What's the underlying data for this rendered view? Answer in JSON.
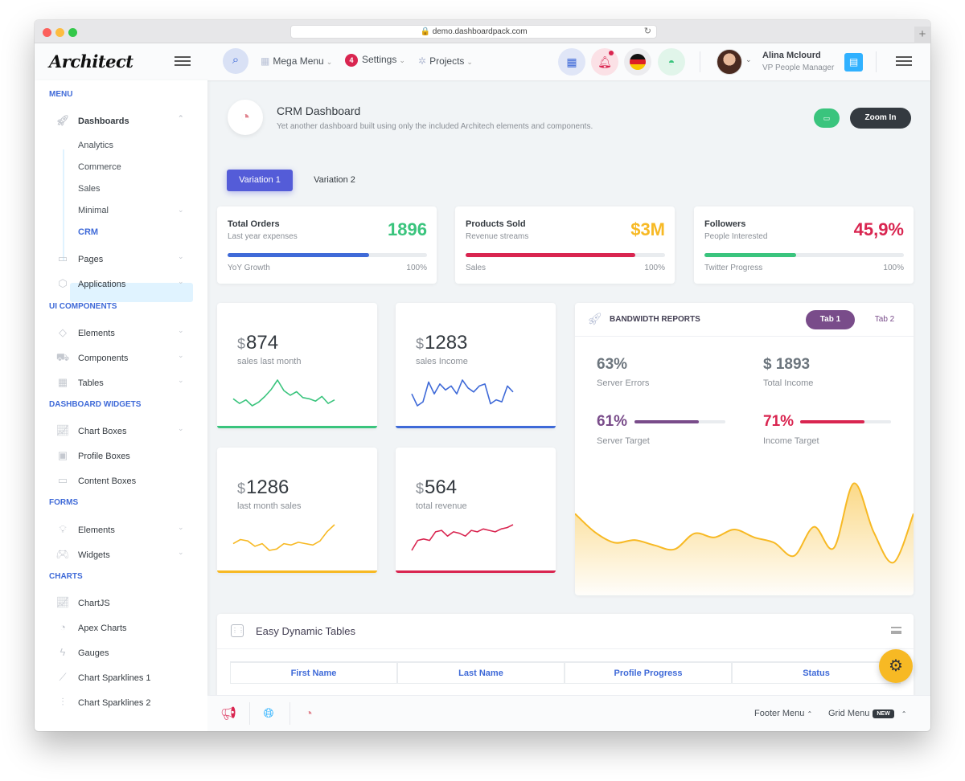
{
  "browser": {
    "url": "demo.dashboardpack.com",
    "reload_icon": "reload-icon",
    "newtab_label": "+"
  },
  "header": {
    "logo": "Architect",
    "nav": [
      {
        "label": "Mega Menu",
        "icon": "grid-icon"
      },
      {
        "label": "Settings",
        "badge": "4"
      },
      {
        "label": "Projects",
        "icon": "gear-icon"
      }
    ],
    "user": {
      "name": "Alina Mclourd",
      "role": "VP People Manager"
    }
  },
  "sidebar": {
    "sections": [
      "Menu",
      "UI Components",
      "Dashboard Widgets",
      "Forms",
      "Charts"
    ],
    "dashboards": {
      "label": "Dashboards",
      "children": [
        "Analytics",
        "Commerce",
        "Sales",
        "Minimal",
        "CRM"
      ]
    },
    "items_main": [
      "Pages",
      "Applications"
    ],
    "items_ui": [
      "Elements",
      "Components",
      "Tables"
    ],
    "items_widgets": [
      "Chart Boxes",
      "Profile Boxes",
      "Content Boxes"
    ],
    "items_forms": [
      "Elements",
      "Widgets"
    ],
    "items_charts": [
      "ChartJS",
      "Apex Charts",
      "Gauges",
      "Chart Sparklines 1",
      "Chart Sparklines 2"
    ]
  },
  "page": {
    "title": "CRM Dashboard",
    "subtitle": "Yet another dashboard built using only the included Architech elements and components.",
    "zoom_label": "Zoom In",
    "tabs": [
      "Variation 1",
      "Variation 2"
    ]
  },
  "widgets": [
    {
      "title": "Total Orders",
      "sub": "Last year expenses",
      "value": "1896",
      "foot": "YoY Growth",
      "pct": "100%",
      "progress": 71,
      "color": "#3ac47d",
      "bar": "#3f6ad8"
    },
    {
      "title": "Products Sold",
      "sub": "Revenue streams",
      "value": "$3M",
      "foot": "Sales",
      "pct": "100%",
      "progress": 85,
      "color": "#f7b924",
      "bar": "#d92550"
    },
    {
      "title": "Followers",
      "sub": "People Interested",
      "value": "45,9%",
      "foot": "Twitter Progress",
      "pct": "100%",
      "progress": 46,
      "color": "#d92550",
      "bar": "#3ac47d"
    }
  ],
  "salesboxes": [
    {
      "currency": "$",
      "value": "874",
      "label": "sales last month",
      "color": "#3ac47d",
      "trend": [
        10,
        6,
        9,
        4,
        7,
        12,
        18,
        26,
        17,
        13,
        16,
        11,
        10,
        8,
        12,
        6,
        9
      ]
    },
    {
      "currency": "$",
      "value": "1283",
      "label": "sales Income",
      "color": "#3f6ad8",
      "trend": [
        9,
        3,
        5,
        15,
        9,
        14,
        11,
        13,
        9,
        16,
        12,
        10,
        13,
        14,
        4,
        6,
        5,
        13,
        10
      ]
    },
    {
      "currency": "$",
      "value": "1286",
      "label": "last month sales",
      "color": "#f7b924",
      "trend": [
        8,
        11,
        10,
        6,
        8,
        3,
        4,
        8,
        7,
        9,
        8,
        7,
        10,
        17,
        22
      ]
    },
    {
      "currency": "$",
      "value": "564",
      "label": "total revenue",
      "color": "#d92550",
      "trend": [
        3,
        10,
        11,
        10,
        16,
        17,
        13,
        16,
        15,
        13,
        17,
        16,
        18,
        17,
        16,
        18,
        19,
        21
      ]
    }
  ],
  "bandwidth": {
    "title": "Bandwidth Reports",
    "tabs": [
      "Tab 1",
      "Tab 2"
    ],
    "stats": [
      {
        "value": "63%",
        "label": "Server Errors"
      },
      {
        "value": "$ 1893",
        "label": "Total Income"
      },
      {
        "value": "61%",
        "label": "Server Target",
        "progress": 71,
        "color": "#794c8a"
      },
      {
        "value": "71%",
        "label": "Income Target",
        "progress": 71,
        "color": "#d92550"
      }
    ],
    "area": [
      62,
      48,
      40,
      42,
      38,
      35,
      47,
      44,
      50,
      44,
      40,
      30,
      52,
      36,
      85,
      48,
      25,
      62
    ],
    "area_color": "#f7b924"
  },
  "table": {
    "title": "Easy Dynamic Tables",
    "columns": [
      "First Name",
      "Last Name",
      "Profile Progress",
      "Status"
    ]
  },
  "footer": {
    "menu1": "Footer Menu",
    "menu2": "Grid Menu",
    "new_badge": "NEW"
  },
  "colors": {
    "primary": "#3f6ad8",
    "success": "#3ac47d",
    "warning": "#f7b924",
    "danger": "#d92550",
    "alt": "#794c8a"
  }
}
